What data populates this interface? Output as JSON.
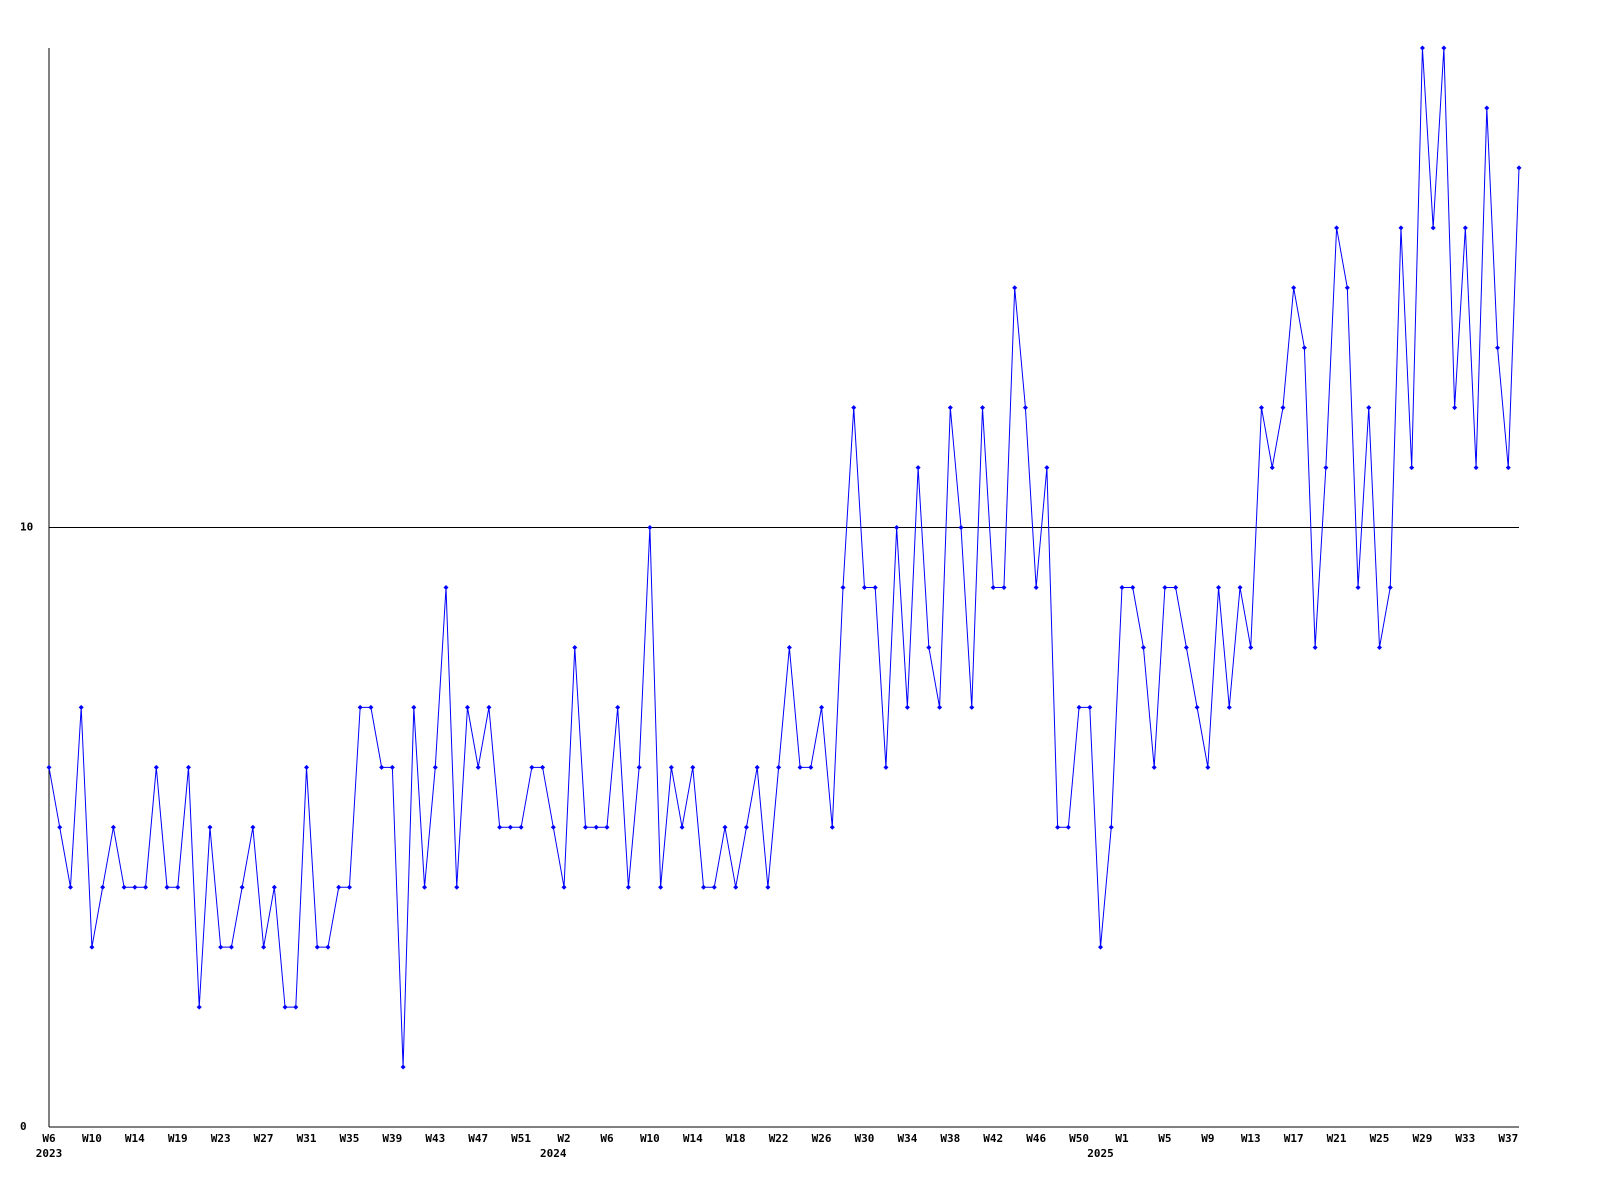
{
  "chart_data": {
    "type": "line",
    "categories": [
      "W6",
      null,
      null,
      null,
      "W10",
      null,
      null,
      null,
      "W14",
      null,
      null,
      null,
      "W19",
      null,
      null,
      null,
      "W23",
      null,
      null,
      null,
      "W27",
      null,
      null,
      null,
      "W31",
      null,
      null,
      null,
      "W35",
      null,
      null,
      null,
      "W39",
      null,
      null,
      null,
      "W43",
      null,
      null,
      null,
      "W47",
      null,
      null,
      null,
      "W51",
      null,
      null,
      null,
      "W2",
      null,
      null,
      null,
      "W6",
      null,
      null,
      null,
      "W10",
      null,
      null,
      null,
      "W14",
      null,
      null,
      null,
      "W18",
      null,
      null,
      null,
      "W22",
      null,
      null,
      null,
      "W26",
      null,
      null,
      null,
      "W30",
      null,
      null,
      null,
      "W34",
      null,
      null,
      null,
      "W38",
      null,
      null,
      null,
      "W42",
      null,
      null,
      null,
      "W46",
      null,
      null,
      null,
      "W50",
      null,
      null,
      null,
      "W1",
      null,
      null,
      null,
      "W5",
      null,
      null,
      null,
      "W9",
      null,
      null,
      null,
      "W13",
      null,
      null,
      null,
      "W17",
      null,
      null,
      null,
      "W21",
      null,
      null,
      null,
      "W25",
      null,
      null,
      null,
      "W29",
      null,
      null,
      null,
      "W33",
      null,
      null,
      null,
      "W37",
      null
    ],
    "year_labels": [
      "2023",
      null,
      null,
      null,
      null,
      null,
      null,
      null,
      null,
      null,
      null,
      null,
      null,
      null,
      null,
      null,
      null,
      null,
      null,
      null,
      null,
      null,
      null,
      null,
      null,
      null,
      null,
      null,
      null,
      null,
      null,
      null,
      null,
      null,
      null,
      null,
      null,
      null,
      null,
      null,
      null,
      null,
      null,
      null,
      null,
      null,
      null,
      "2024",
      null,
      null,
      null,
      null,
      null,
      null,
      null,
      null,
      null,
      null,
      null,
      null,
      null,
      null,
      null,
      null,
      null,
      null,
      null,
      null,
      null,
      null,
      null,
      null,
      null,
      null,
      null,
      null,
      null,
      null,
      null,
      null,
      null,
      null,
      null,
      null,
      null,
      null,
      null,
      null,
      null,
      null,
      null,
      null,
      null,
      null,
      null,
      null,
      null,
      null,
      "2025",
      null,
      null,
      null,
      null,
      null,
      null,
      null,
      null,
      null,
      null,
      null,
      null,
      null,
      null,
      null,
      null,
      null,
      null,
      null,
      null,
      null,
      null,
      null,
      null,
      null,
      null,
      null,
      null,
      null,
      null,
      null,
      null,
      null,
      null,
      null,
      null,
      null
    ],
    "values": [
      6,
      5,
      4,
      7,
      3,
      4,
      5,
      4,
      4,
      4,
      6,
      4,
      4,
      6,
      2,
      5,
      3,
      3,
      4,
      5,
      3,
      4,
      2,
      2,
      6,
      3,
      3,
      4,
      4,
      7,
      7,
      6,
      6,
      1,
      7,
      4,
      6,
      9,
      4,
      7,
      6,
      7,
      5,
      5,
      5,
      6,
      6,
      5,
      4,
      8,
      5,
      5,
      5,
      7,
      4,
      6,
      10,
      4,
      6,
      5,
      6,
      4,
      4,
      5,
      4,
      5,
      6,
      4,
      6,
      8,
      6,
      6,
      7,
      5,
      9,
      12,
      9,
      9,
      6,
      10,
      7,
      11,
      8,
      7,
      12,
      10,
      7,
      12,
      9,
      9,
      14,
      12,
      9,
      11,
      5,
      5,
      7,
      7,
      3,
      5,
      9,
      9,
      8,
      6,
      9,
      9,
      8,
      7,
      6,
      9,
      7,
      9,
      8,
      12,
      11,
      12,
      14,
      13,
      8,
      11,
      15,
      14,
      9,
      12,
      8,
      9,
      15,
      11,
      18,
      15,
      18,
      12,
      15,
      11,
      17,
      13,
      11,
      16
    ],
    "color": "#0000ff",
    "ylim": [
      0,
      18
    ],
    "yticks": [
      0,
      10
    ],
    "grid": true
  }
}
